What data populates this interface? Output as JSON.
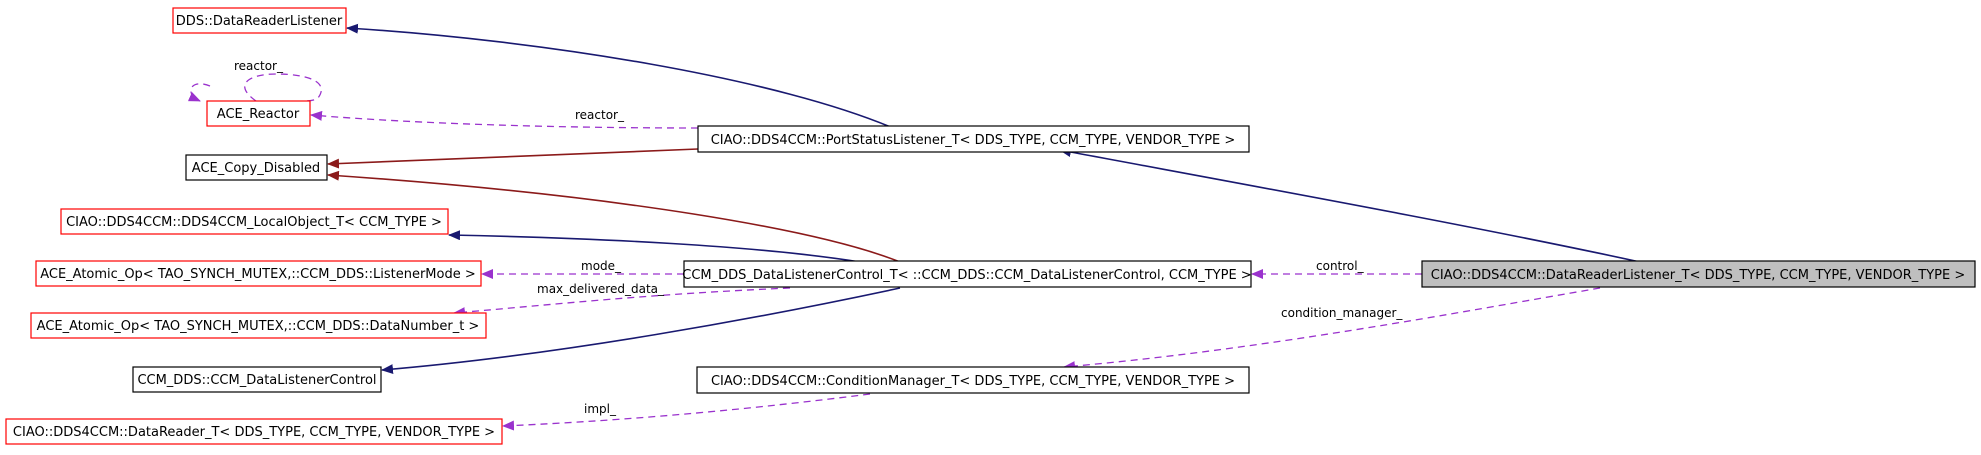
{
  "colors": {
    "background": "#ffffff",
    "node_border_red": "#ff0000",
    "node_border_black": "#000000",
    "node_fill_selected": "#bfbfbf",
    "edge_inherit": "#191970",
    "edge_private": "#8b1a1a",
    "edge_usage": "#9a32cd"
  },
  "nodes": {
    "dds_datareaderlistener": "DDS::DataReaderListener",
    "ace_reactor": "ACE_Reactor",
    "ace_copy_disabled": "ACE_Copy_Disabled",
    "port_status_listener": "CIAO::DDS4CCM::PortStatusListener_T< DDS_TYPE, CCM_TYPE, VENDOR_TYPE >",
    "local_object": "CIAO::DDS4CCM::DDS4CCM_LocalObject_T< CCM_TYPE >",
    "atomic_listener_mode": "ACE_Atomic_Op< TAO_SYNCH_MUTEX,::CCM_DDS::ListenerMode >",
    "data_listener_control_t": "CCM_DDS_DataListenerControl_T< ::CCM_DDS::CCM_DataListenerControl, CCM_TYPE >",
    "data_reader_listener_t": "CIAO::DDS4CCM::DataReaderListener_T< DDS_TYPE, CCM_TYPE, VENDOR_TYPE >",
    "atomic_data_number": "ACE_Atomic_Op< TAO_SYNCH_MUTEX,::CCM_DDS::DataNumber_t >",
    "ccm_data_listener_control": "CCM_DDS::CCM_DataListenerControl",
    "condition_manager_t": "CIAO::DDS4CCM::ConditionManager_T< DDS_TYPE, CCM_TYPE, VENDOR_TYPE >",
    "data_reader_t": "CIAO::DDS4CCM::DataReader_T< DDS_TYPE, CCM_TYPE, VENDOR_TYPE >"
  },
  "edge_labels": {
    "reactor_self": "reactor_",
    "reactor": "reactor_",
    "mode": "mode_",
    "max_delivered_data": "max_delivered_data_",
    "control": "control_",
    "condition_manager": "condition_manager_",
    "impl": "impl_"
  }
}
